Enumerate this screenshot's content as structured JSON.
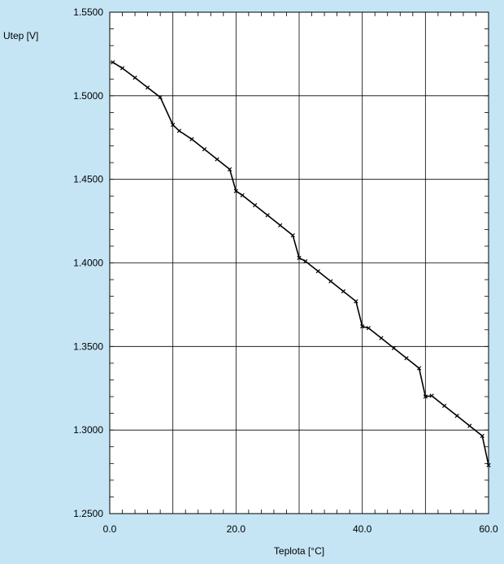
{
  "colors": {
    "background": "#c5e5f5",
    "plot_area": "#ffffff",
    "grid": "#000000",
    "series": "#000000"
  },
  "chart_data": {
    "type": "scatter",
    "title": "",
    "xlabel": "Teplota [°C]",
    "ylabel": "Utep [V]",
    "xlim": [
      0,
      60
    ],
    "ylim": [
      1.25,
      1.55
    ],
    "grid": true,
    "x_ticks": [
      0,
      20,
      40,
      60
    ],
    "x_tick_labels": [
      "0.0",
      "20.0",
      "40.0",
      "60.0"
    ],
    "x_gridlines": [
      0,
      10,
      20,
      30,
      40,
      50,
      60
    ],
    "y_ticks": [
      1.25,
      1.3,
      1.35,
      1.4,
      1.45,
      1.5,
      1.55
    ],
    "y_tick_labels": [
      "1.2500",
      "1.3000",
      "1.3500",
      "1.4000",
      "1.4500",
      "1.5000",
      "1.5500"
    ],
    "series": [
      {
        "marker": "x",
        "x": [
          0.5,
          2,
          4,
          6,
          8,
          10,
          11,
          13,
          15,
          17,
          19,
          20,
          21,
          23,
          25,
          27,
          29,
          30,
          31,
          33,
          35,
          37,
          39,
          40,
          41,
          43,
          45,
          47,
          49,
          50,
          51,
          53,
          55,
          57,
          59,
          60
        ],
        "y": [
          1.52,
          1.5165,
          1.5108,
          1.5049,
          1.4991,
          1.4826,
          1.479,
          1.474,
          1.468,
          1.462,
          1.456,
          1.443,
          1.4405,
          1.4345,
          1.4285,
          1.4225,
          1.4165,
          1.403,
          1.401,
          1.395,
          1.389,
          1.383,
          1.377,
          1.362,
          1.361,
          1.355,
          1.349,
          1.343,
          1.337,
          1.32,
          1.3205,
          1.3145,
          1.3085,
          1.3025,
          1.2965,
          1.279
        ]
      }
    ]
  }
}
